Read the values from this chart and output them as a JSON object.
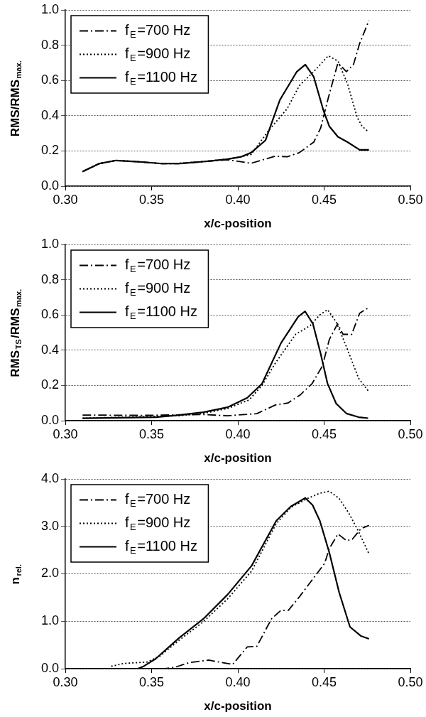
{
  "chart_data": [
    {
      "type": "line",
      "xlabel": "x/c-position",
      "ylabel": "RMS/RMS$_{max.}$",
      "xlim": [
        0.3,
        0.5
      ],
      "ylim": [
        0,
        1
      ],
      "xticks": [
        {
          "value": 0.3,
          "label": "0.30"
        },
        {
          "value": 0.35,
          "label": "0.35"
        },
        {
          "value": 0.4,
          "label": "0.40"
        },
        {
          "value": 0.45,
          "label": "0.45"
        },
        {
          "value": 0.5,
          "label": "0.50"
        }
      ],
      "yticks": [
        {
          "value": 0,
          "label": "0.0"
        },
        {
          "value": 0.2,
          "label": "0.2"
        },
        {
          "value": 0.4,
          "label": "0.4"
        },
        {
          "value": 0.6,
          "label": "0.6"
        },
        {
          "value": 0.8,
          "label": "0.8"
        },
        {
          "value": 1,
          "label": "1.0"
        }
      ],
      "grid": "y",
      "legend": "top left",
      "marker": "none",
      "series": [
        {
          "name": "f$_{E}$=700 Hz",
          "color": "#000000",
          "line_style": "dashdot",
          "x": [
            0.31,
            0.3196,
            0.3294,
            0.342,
            0.356,
            0.3657,
            0.3797,
            0.3937,
            0.4077,
            0.4216,
            0.4286,
            0.4356,
            0.444,
            0.448,
            0.4524,
            0.458,
            0.4629,
            0.467,
            0.4706,
            0.476
          ],
          "values": [
            0.083,
            0.128,
            0.146,
            0.139,
            0.128,
            0.128,
            0.139,
            0.15,
            0.13,
            0.17,
            0.167,
            0.19,
            0.25,
            0.33,
            0.5,
            0.7,
            0.65,
            0.69,
            0.81,
            0.94
          ]
        },
        {
          "name": "f$_{E}$=900 Hz",
          "color": "#000000",
          "line_style": "dotted",
          "x": [
            0.31,
            0.3196,
            0.3294,
            0.342,
            0.356,
            0.3657,
            0.3797,
            0.3937,
            0.402,
            0.4077,
            0.4174,
            0.4286,
            0.4356,
            0.444,
            0.4524,
            0.458,
            0.4636,
            0.4692,
            0.472,
            0.4755
          ],
          "values": [
            0.083,
            0.128,
            0.146,
            0.139,
            0.128,
            0.13,
            0.14,
            0.153,
            0.167,
            0.18,
            0.31,
            0.44,
            0.57,
            0.65,
            0.74,
            0.71,
            0.58,
            0.39,
            0.34,
            0.31
          ]
        },
        {
          "name": "f$_{E}$=1100 Hz",
          "color": "#000000",
          "line_style": "solid",
          "x": [
            0.31,
            0.3196,
            0.3294,
            0.342,
            0.356,
            0.3657,
            0.3797,
            0.3937,
            0.402,
            0.4077,
            0.416,
            0.4244,
            0.4342,
            0.4391,
            0.444,
            0.4496,
            0.453,
            0.458,
            0.4636,
            0.4706,
            0.476
          ],
          "values": [
            0.083,
            0.128,
            0.146,
            0.139,
            0.128,
            0.128,
            0.139,
            0.153,
            0.167,
            0.19,
            0.26,
            0.49,
            0.65,
            0.69,
            0.62,
            0.43,
            0.34,
            0.28,
            0.25,
            0.206,
            0.206
          ]
        }
      ]
    },
    {
      "type": "line",
      "xlabel": "x/c-position",
      "ylabel": "RMS$_{TS}$/RMS$_{max.}$",
      "xlim": [
        0.3,
        0.5
      ],
      "ylim": [
        0,
        1
      ],
      "xticks": [
        {
          "value": 0.3,
          "label": "0.30"
        },
        {
          "value": 0.35,
          "label": "0.35"
        },
        {
          "value": 0.4,
          "label": "0.40"
        },
        {
          "value": 0.45,
          "label": "0.45"
        },
        {
          "value": 0.5,
          "label": "0.50"
        }
      ],
      "yticks": [
        {
          "value": 0,
          "label": "0.0"
        },
        {
          "value": 0.2,
          "label": "0.2"
        },
        {
          "value": 0.4,
          "label": "0.4"
        },
        {
          "value": 0.6,
          "label": "0.6"
        },
        {
          "value": 0.8,
          "label": "0.8"
        },
        {
          "value": 1,
          "label": "1.0"
        }
      ],
      "grid": "y",
      "legend": "top left",
      "marker": "none",
      "series": [
        {
          "name": "f$_{E}$=700 Hz",
          "color": "#000000",
          "line_style": "dashdot",
          "x": [
            0.31,
            0.345,
            0.38,
            0.394,
            0.411,
            0.422,
            0.429,
            0.436,
            0.443,
            0.449,
            0.453,
            0.4578,
            0.461,
            0.466,
            0.4706,
            0.4755
          ],
          "values": [
            0.032,
            0.03,
            0.035,
            0.028,
            0.04,
            0.09,
            0.1,
            0.145,
            0.21,
            0.31,
            0.46,
            0.55,
            0.49,
            0.49,
            0.61,
            0.64
          ]
        },
        {
          "name": "f$_{E}$=900 Hz",
          "color": "#000000",
          "line_style": "dotted",
          "x": [
            0.31,
            0.366,
            0.38,
            0.394,
            0.4066,
            0.414,
            0.4216,
            0.4335,
            0.442,
            0.4475,
            0.452,
            0.457,
            0.4629,
            0.47,
            0.4755
          ],
          "values": [
            0.014,
            0.028,
            0.041,
            0.069,
            0.118,
            0.2,
            0.325,
            0.49,
            0.54,
            0.6,
            0.63,
            0.56,
            0.42,
            0.24,
            0.17
          ]
        },
        {
          "name": "f$_{E}$=1100 Hz",
          "color": "#000000",
          "line_style": "solid",
          "x": [
            0.31,
            0.3524,
            0.366,
            0.38,
            0.394,
            0.4055,
            0.414,
            0.425,
            0.435,
            0.439,
            0.4435,
            0.448,
            0.452,
            0.457,
            0.4629,
            0.47,
            0.4755
          ],
          "values": [
            0.014,
            0.02,
            0.032,
            0.048,
            0.076,
            0.13,
            0.21,
            0.44,
            0.59,
            0.62,
            0.55,
            0.38,
            0.21,
            0.097,
            0.041,
            0.02,
            0.014
          ]
        }
      ]
    },
    {
      "type": "line",
      "xlabel": "x/c-position",
      "ylabel": "n$_{rel.}$",
      "xlim": [
        0.3,
        0.5
      ],
      "ylim": [
        0,
        4
      ],
      "xticks": [
        {
          "value": 0.3,
          "label": "0.30"
        },
        {
          "value": 0.35,
          "label": "0.35"
        },
        {
          "value": 0.4,
          "label": "0.40"
        },
        {
          "value": 0.45,
          "label": "0.45"
        },
        {
          "value": 0.5,
          "label": "0.50"
        }
      ],
      "yticks": [
        {
          "value": 0,
          "label": "0.0"
        },
        {
          "value": 1,
          "label": "1.0"
        },
        {
          "value": 2,
          "label": "2.0"
        },
        {
          "value": 3,
          "label": "3.0"
        },
        {
          "value": 4,
          "label": "4.0"
        }
      ],
      "grid": "y",
      "legend": "top left",
      "marker": "none",
      "series": [
        {
          "name": "f$_{E}$=700 Hz",
          "color": "#000000",
          "line_style": "dashdot",
          "x": [
            0.31,
            0.358,
            0.3636,
            0.372,
            0.383,
            0.397,
            0.4055,
            0.411,
            0.4195,
            0.425,
            0.4293,
            0.436,
            0.4447,
            0.4503,
            0.453,
            0.458,
            0.463,
            0.4664,
            0.4713,
            0.476
          ],
          "values": [
            0,
            0,
            0.03,
            0.13,
            0.18,
            0.09,
            0.46,
            0.47,
            1.05,
            1.23,
            1.23,
            1.53,
            1.95,
            2.22,
            2.53,
            2.84,
            2.7,
            2.73,
            2.95,
            3.02
          ]
        },
        {
          "name": "f$_{E}$=900 Hz",
          "color": "#000000",
          "line_style": "dotted",
          "x": [
            0.3266,
            0.334,
            0.3475,
            0.355,
            0.366,
            0.38,
            0.394,
            0.408,
            0.4223,
            0.4307,
            0.4405,
            0.4475,
            0.453,
            0.4587,
            0.4643,
            0.47,
            0.476
          ],
          "values": [
            0.05,
            0.11,
            0.14,
            0.27,
            0.6,
            0.99,
            1.47,
            2.06,
            3.06,
            3.4,
            3.59,
            3.7,
            3.74,
            3.59,
            3.28,
            2.89,
            2.42
          ]
        },
        {
          "name": "f$_{E}$=1100 Hz",
          "color": "#000000",
          "line_style": "solid",
          "x": [
            0.31,
            0.342,
            0.3454,
            0.3524,
            0.366,
            0.38,
            0.394,
            0.408,
            0.4223,
            0.4307,
            0.4391,
            0.4433,
            0.4475,
            0.453,
            0.4587,
            0.465,
            0.4713,
            0.476
          ],
          "values": [
            0,
            0,
            0.05,
            0.21,
            0.65,
            1.05,
            1.56,
            2.17,
            3.12,
            3.42,
            3.6,
            3.45,
            3.12,
            2.45,
            1.61,
            0.88,
            0.69,
            0.63
          ]
        }
      ]
    }
  ]
}
